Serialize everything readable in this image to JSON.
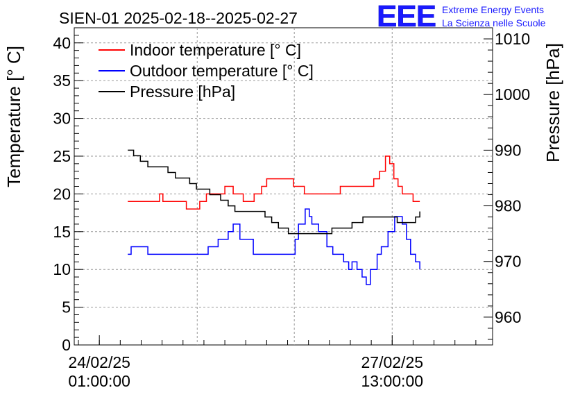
{
  "chart_data": {
    "type": "line",
    "title": "SIEN-01 2025-02-18--2025-02-27",
    "left_axis": {
      "label": "Temperature [° C]",
      "ylim": [
        0,
        42
      ],
      "ticks": [
        0,
        5,
        10,
        15,
        20,
        25,
        30,
        35,
        40
      ],
      "tick_labels": [
        "0",
        "5",
        "10",
        "15",
        "20",
        "25",
        "30",
        "35",
        "40"
      ]
    },
    "right_axis": {
      "label": "Pressure [hPa]",
      "ylim": [
        955,
        1012
      ],
      "ticks": [
        960,
        970,
        980,
        990,
        1000,
        1010
      ],
      "tick_labels": [
        "960",
        "970",
        "980",
        "990",
        "1000",
        "1010"
      ]
    },
    "x_axis": {
      "xlim": [
        -0.3,
        4.7
      ],
      "units": "days since 24/02/25 01:00:00",
      "labeled_ticks": [
        {
          "x": 0,
          "line1": "24/02/25",
          "line2": "01:00:00"
        },
        {
          "x": 3.5,
          "line1": "27/02/25",
          "line2": "13:00:00"
        }
      ],
      "gridlines": [
        1.17,
        2.33,
        3.5
      ]
    },
    "grid": true,
    "legend_position": "top-left",
    "logo": {
      "mark": "EEE",
      "line1": "Extreme Energy Events",
      "line2": "La Scienza nelle Scuole"
    },
    "series": [
      {
        "name": "Indoor temperature [° C]",
        "color": "#ff0000",
        "axis": "left",
        "x": [
          0.34,
          0.67,
          0.72,
          0.76,
          1.04,
          1.2,
          1.28,
          1.36,
          1.5,
          1.6,
          1.72,
          1.85,
          1.94,
          2.0,
          2.14,
          2.23,
          2.32,
          2.45,
          2.52,
          2.72,
          2.78,
          2.88,
          2.98,
          3.08,
          3.15,
          3.28,
          3.35,
          3.42,
          3.47,
          3.52,
          3.57,
          3.62,
          3.7,
          3.75,
          3.78,
          3.83
        ],
        "values": [
          19,
          19,
          20,
          19,
          18,
          19,
          20,
          20,
          21,
          20,
          19,
          20,
          21,
          22,
          22,
          22,
          21,
          20,
          20,
          20,
          20,
          21,
          21,
          21,
          21,
          22,
          23,
          25,
          24,
          22,
          21,
          20,
          20,
          19,
          19,
          19
        ]
      },
      {
        "name": "Outdoor temperature [° C]",
        "color": "#0000ff",
        "axis": "left",
        "x": [
          0.34,
          0.38,
          0.44,
          0.58,
          0.66,
          0.9,
          1.15,
          1.3,
          1.42,
          1.54,
          1.6,
          1.68,
          1.84,
          1.9,
          1.96,
          2.08,
          2.14,
          2.2,
          2.34,
          2.38,
          2.46,
          2.51,
          2.54,
          2.62,
          2.67,
          2.72,
          2.79,
          2.86,
          2.92,
          2.98,
          3.02,
          3.08,
          3.14,
          3.19,
          3.24,
          3.32,
          3.37,
          3.45,
          3.53,
          3.57,
          3.62,
          3.67,
          3.72,
          3.78,
          3.83
        ],
        "values": [
          12,
          13,
          13,
          12,
          12,
          12,
          12,
          13,
          14,
          15,
          16,
          14,
          12,
          12,
          12,
          12,
          12,
          12,
          14,
          16,
          18,
          17,
          16,
          15,
          15,
          13,
          12,
          12,
          11,
          10,
          11,
          10,
          9,
          8,
          10,
          12,
          13,
          15,
          17,
          17,
          16,
          14,
          12,
          11,
          10
        ]
      },
      {
        "name": "Pressure [hPa]",
        "color": "#000000",
        "axis": "right",
        "x": [
          0.34,
          0.41,
          0.49,
          0.58,
          0.7,
          0.82,
          0.91,
          1.08,
          1.16,
          1.32,
          1.45,
          1.54,
          1.62,
          1.84,
          1.98,
          2.06,
          2.14,
          2.26,
          2.35,
          2.48,
          2.56,
          2.65,
          2.71,
          2.78,
          3.02,
          3.15,
          3.25,
          3.32,
          3.4,
          3.56,
          3.63,
          3.73,
          3.78,
          3.83
        ],
        "values": [
          990,
          989,
          988,
          987,
          987,
          986,
          985,
          984,
          983,
          982,
          981,
          980,
          979,
          979,
          978,
          977,
          976,
          975,
          975,
          975,
          975,
          975,
          975,
          976,
          977,
          978,
          978,
          978,
          978,
          977,
          977,
          977,
          978,
          979
        ]
      }
    ]
  }
}
